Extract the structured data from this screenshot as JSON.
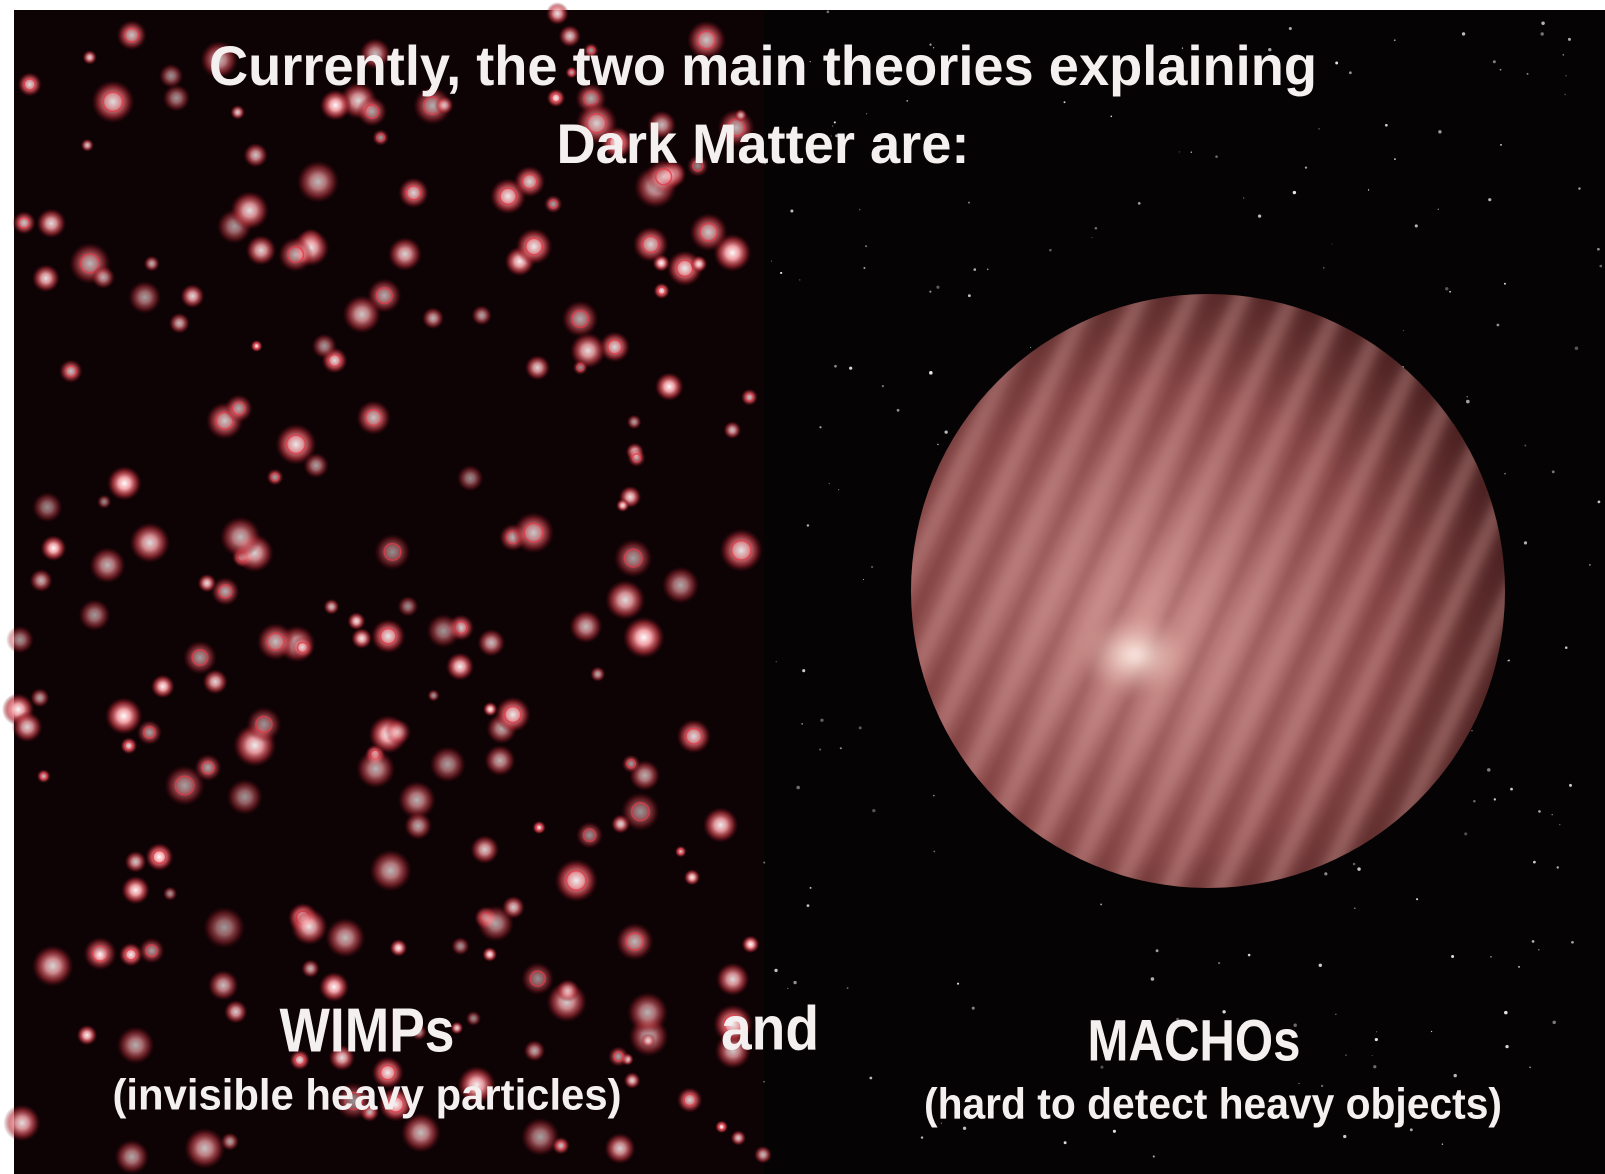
{
  "title": {
    "line1": "Currently, the two main theories explaining",
    "line2": "Dark Matter are:"
  },
  "left": {
    "name": "WIMPs",
    "description": "(invisible heavy particles)"
  },
  "connector": "and",
  "right": {
    "name": "MACHOs",
    "description": "(hard to detect heavy objects)"
  }
}
